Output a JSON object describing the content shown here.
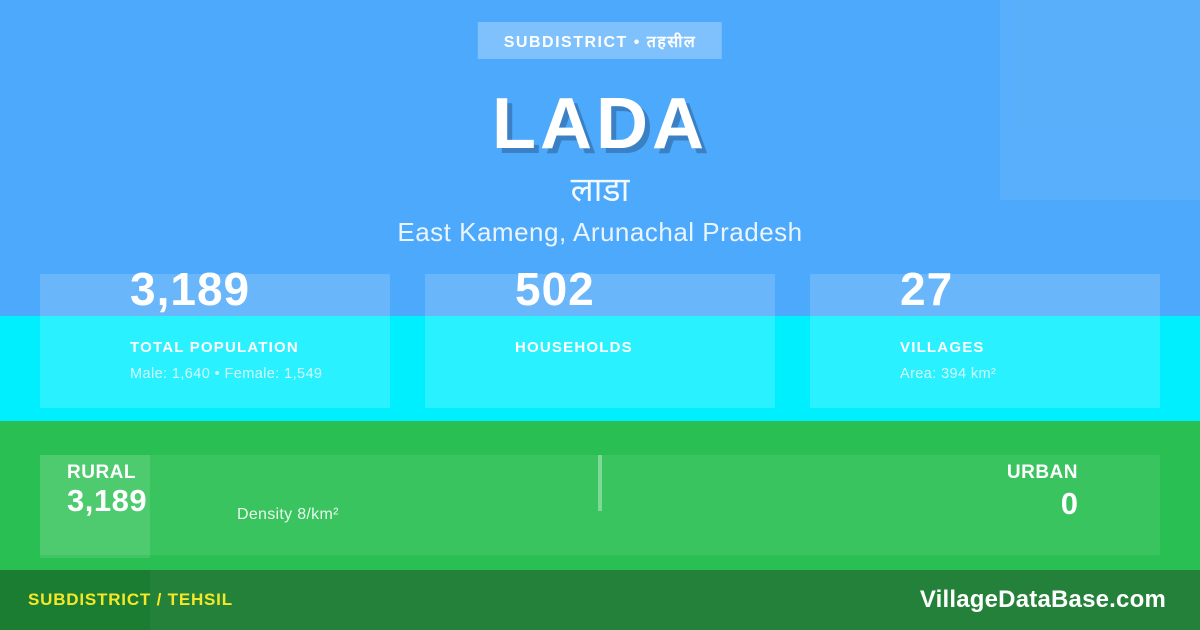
{
  "colors": {
    "hero_blue": "#4DA9FB",
    "cyan_band": "#00EFFF",
    "panel_green": "#2ABF52",
    "footer_green": "#1B7D32",
    "accent_yellow": "#F6E829",
    "title_shadow_blue": "#3B80C4"
  },
  "header": {
    "badge": "SUBDISTRICT • तहसील",
    "title": "LADA",
    "title_native": "लाडा",
    "location": "East Kameng, Arunachal Pradesh"
  },
  "stats": [
    {
      "value": "3,189",
      "label": "TOTAL POPULATION",
      "detail": "Male: 1,640 • Female: 1,549"
    },
    {
      "value": "502",
      "label": "HOUSEHOLDS",
      "detail": ""
    },
    {
      "value": "27",
      "label": "VILLAGES",
      "detail": "Area: 394 km²"
    }
  ],
  "rural_urban": {
    "rural_label": "RURAL",
    "rural_value": "3,189",
    "density": "Density 8/km²",
    "urban_label": "URBAN",
    "urban_value": "0"
  },
  "footer": {
    "type_label": "SUBDISTRICT / TEHSIL",
    "website": "VillageDataBase.com"
  }
}
